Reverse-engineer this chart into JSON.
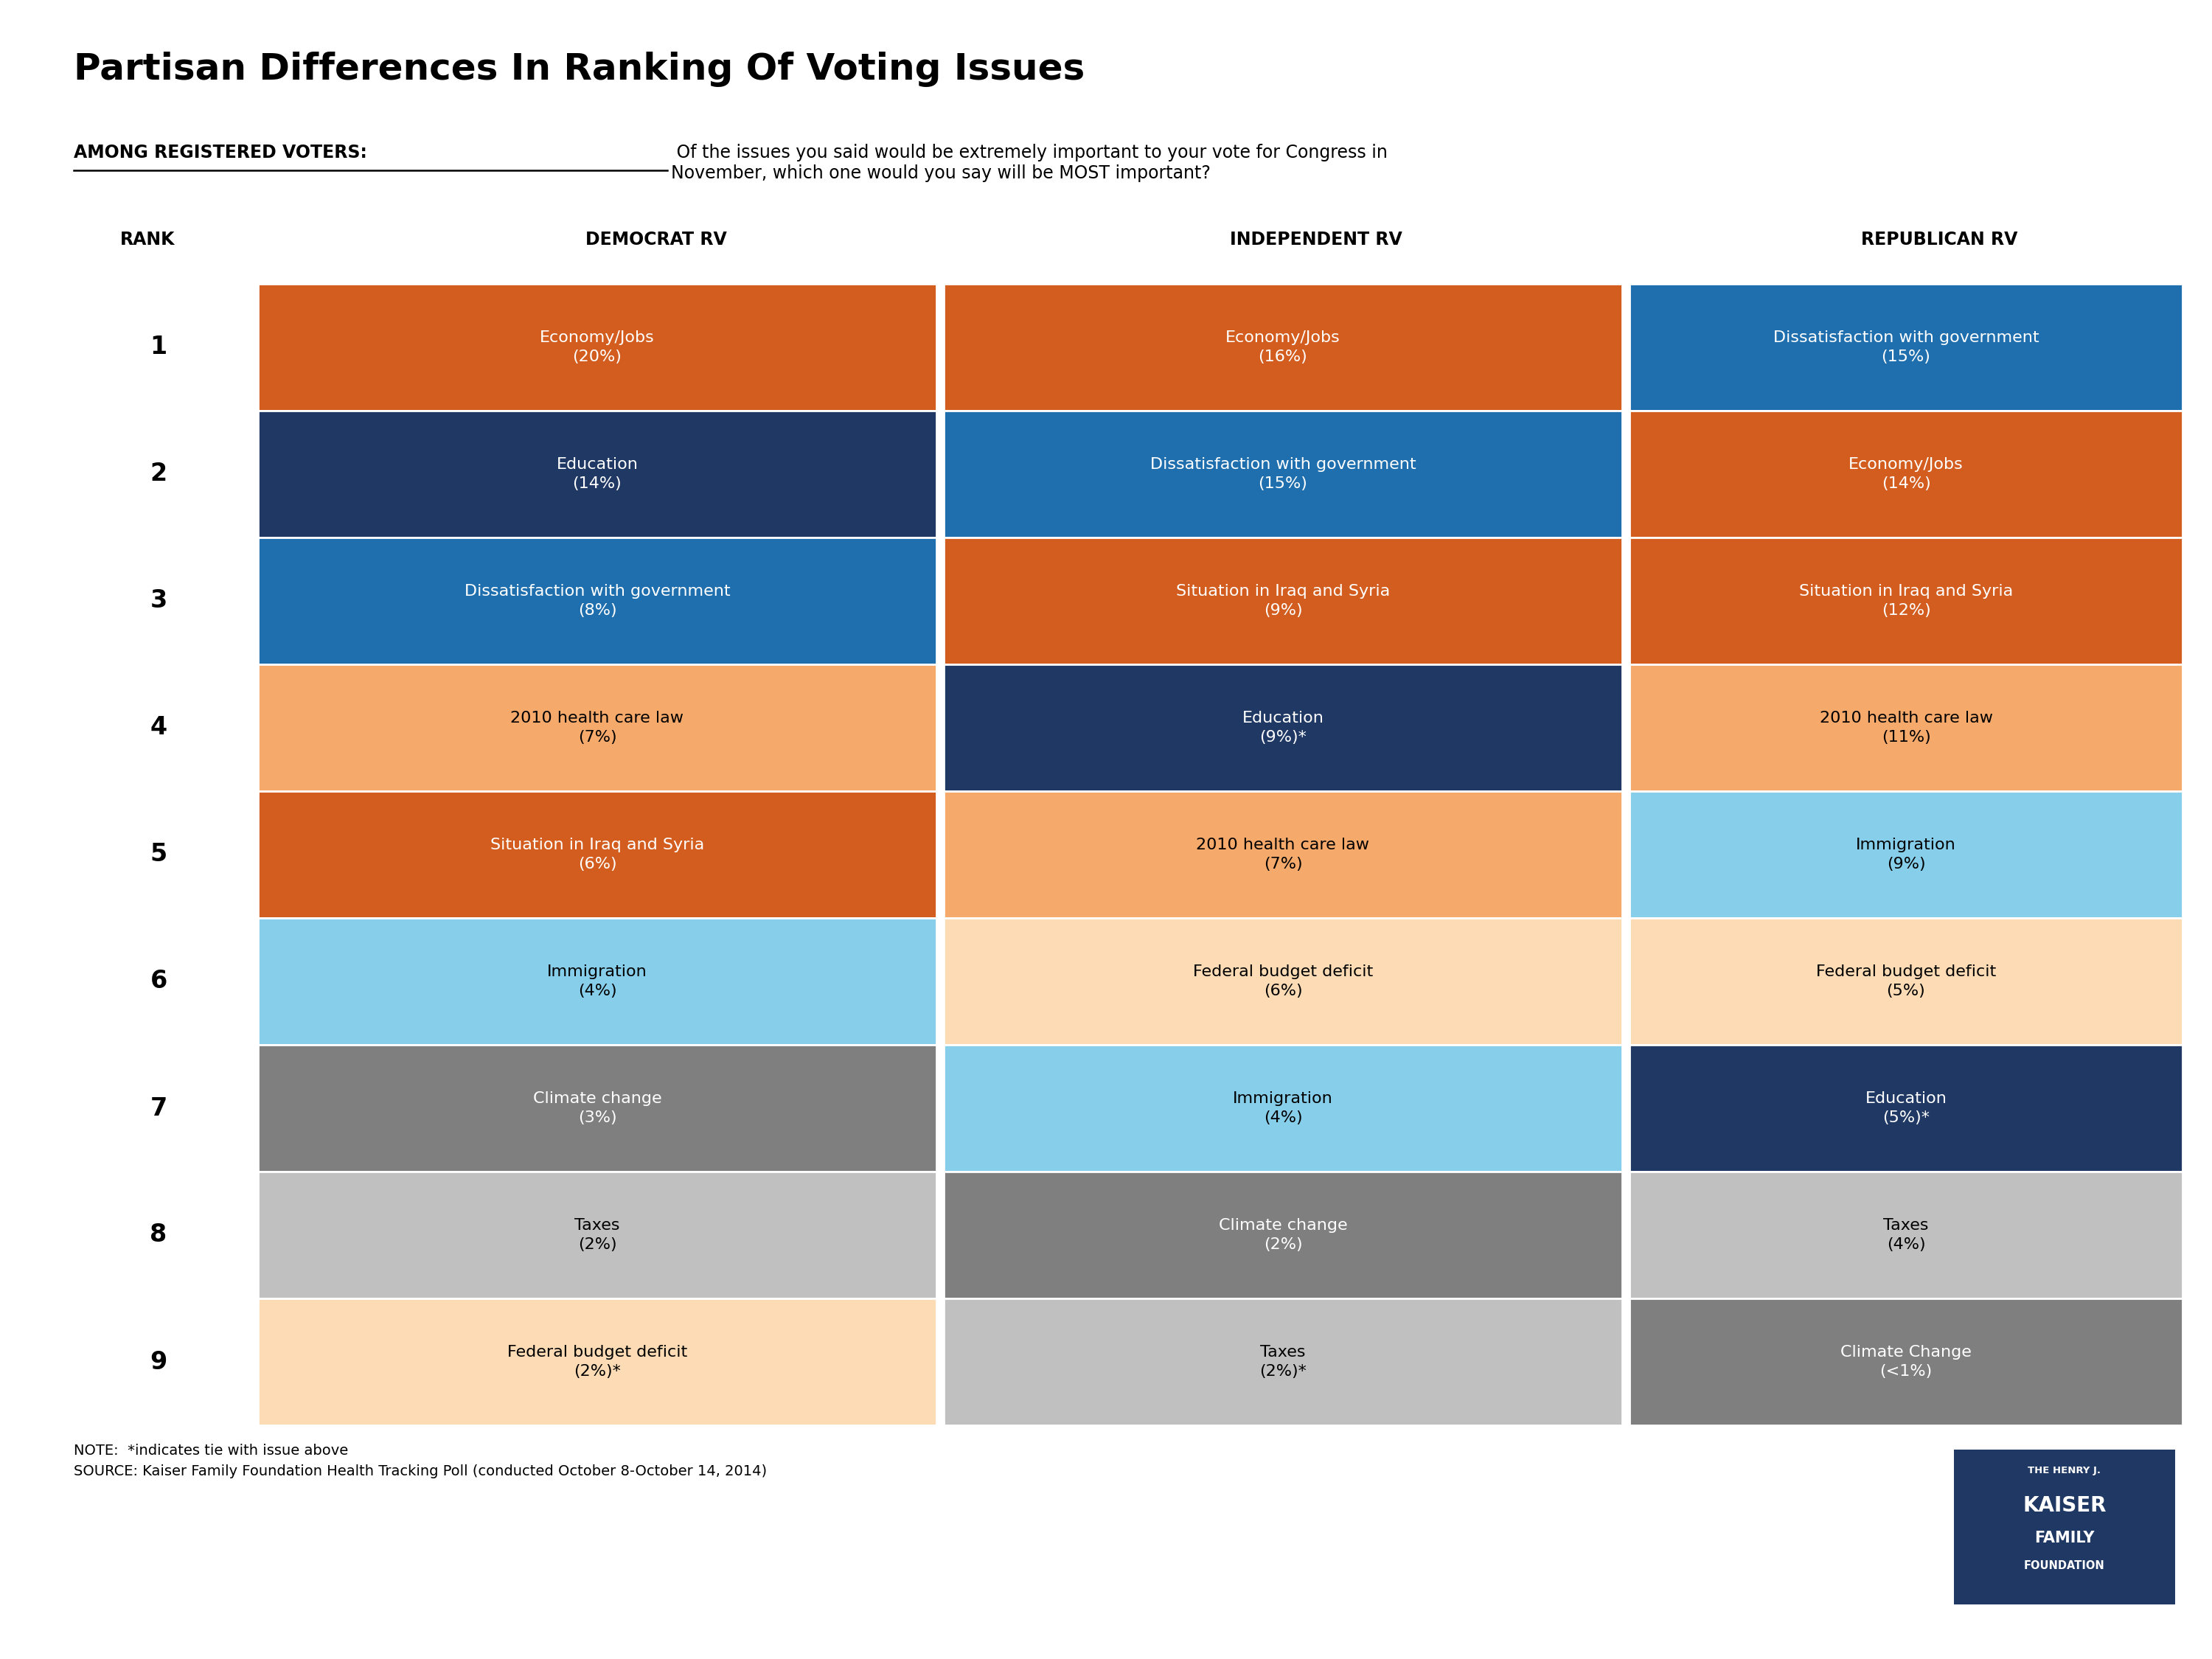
{
  "title": "Partisan Differences In Ranking Of Voting Issues",
  "subtitle_underline": "AMONG REGISTERED VOTERS:",
  "subtitle_rest": " Of the issues you said would be extremely important to your vote for Congress in\nNovember, which one would you say will be MOST important?",
  "col_headers": [
    "RANK",
    "DEMOCRAT RV",
    "INDEPENDENT RV",
    "REPUBLICAN RV"
  ],
  "note": "NOTE:  *indicates tie with issue above\nSOURCE: Kaiser Family Foundation Health Tracking Poll (conducted October 8-October 14, 2014)",
  "rows": [
    {
      "rank": "1",
      "dem": {
        "text": "Economy/Jobs\n(20%)",
        "color": "#D35D1E"
      },
      "ind": {
        "text": "Economy/Jobs\n(16%)",
        "color": "#D35D1E"
      },
      "rep": {
        "text": "Dissatisfaction with government\n(15%)",
        "color": "#1F6FAE"
      }
    },
    {
      "rank": "2",
      "dem": {
        "text": "Education\n(14%)",
        "color": "#1F3864"
      },
      "ind": {
        "text": "Dissatisfaction with government\n(15%)",
        "color": "#1F6FAE"
      },
      "rep": {
        "text": "Economy/Jobs\n(14%)",
        "color": "#D35D1E"
      }
    },
    {
      "rank": "3",
      "dem": {
        "text": "Dissatisfaction with government\n(8%)",
        "color": "#1F6FAE"
      },
      "ind": {
        "text": "Situation in Iraq and Syria\n(9%)",
        "color": "#D35D1E"
      },
      "rep": {
        "text": "Situation in Iraq and Syria\n(12%)",
        "color": "#D35D1E"
      }
    },
    {
      "rank": "4",
      "dem": {
        "text": "2010 health care law\n(7%)",
        "color": "#F5A96B"
      },
      "ind": {
        "text": "Education\n(9%)*",
        "color": "#1F3864"
      },
      "rep": {
        "text": "2010 health care law\n(11%)",
        "color": "#F5A96B"
      }
    },
    {
      "rank": "5",
      "dem": {
        "text": "Situation in Iraq and Syria\n(6%)",
        "color": "#D35D1E"
      },
      "ind": {
        "text": "2010 health care law\n(7%)",
        "color": "#F5A96B"
      },
      "rep": {
        "text": "Immigration\n(9%)",
        "color": "#87CEEB"
      }
    },
    {
      "rank": "6",
      "dem": {
        "text": "Immigration\n(4%)",
        "color": "#87CEEB"
      },
      "ind": {
        "text": "Federal budget deficit\n(6%)",
        "color": "#FDDCB5"
      },
      "rep": {
        "text": "Federal budget deficit\n(5%)",
        "color": "#FDDCB5"
      }
    },
    {
      "rank": "7",
      "dem": {
        "text": "Climate change\n(3%)",
        "color": "#7F7F7F"
      },
      "ind": {
        "text": "Immigration\n(4%)",
        "color": "#87CEEB"
      },
      "rep": {
        "text": "Education\n(5%)*",
        "color": "#1F3864"
      }
    },
    {
      "rank": "8",
      "dem": {
        "text": "Taxes\n(2%)",
        "color": "#C0C0C0"
      },
      "ind": {
        "text": "Climate change\n(2%)",
        "color": "#7F7F7F"
      },
      "rep": {
        "text": "Taxes\n(4%)",
        "color": "#C0C0C0"
      }
    },
    {
      "rank": "9",
      "dem": {
        "text": "Federal budget deficit\n(2%)*",
        "color": "#FDDCB5"
      },
      "ind": {
        "text": "Taxes\n(2%)*",
        "color": "#C0C0C0"
      },
      "rep": {
        "text": "Climate Change\n(<1%)",
        "color": "#7F7F7F"
      }
    }
  ]
}
